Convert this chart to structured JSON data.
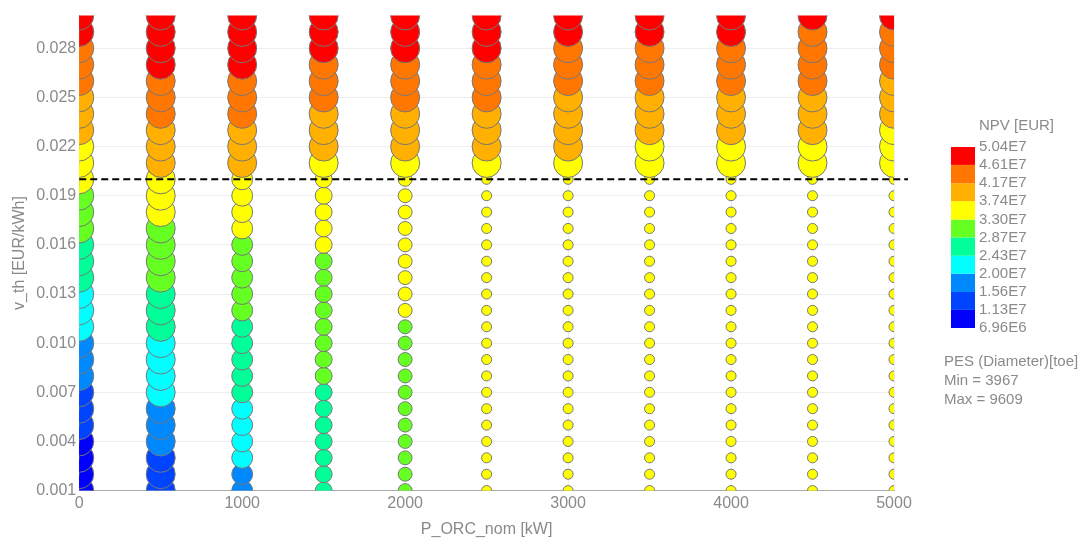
{
  "chart_data": {
    "type": "bubble",
    "xlabel": "P_ORC_nom [kW]",
    "ylabel": "v_th [EUR/kWh]",
    "clabel": "NPV [EUR]",
    "xlim": [
      0,
      5000
    ],
    "xticks": [
      0,
      1000,
      2000,
      3000,
      4000,
      5000
    ],
    "ylim": [
      0.001,
      0.03
    ],
    "yticks": [
      0.001,
      0.004,
      0.007,
      {
        "value": 0.01,
        "label": "0.010"
      },
      0.013,
      0.016,
      0.019,
      0.022,
      0.025,
      0.028
    ],
    "clim": [
      6960000.0,
      50400000.0
    ],
    "cticks": [
      {
        "value": 6960000.0,
        "label": "6.96E6"
      },
      {
        "value": 11300000.0,
        "label": "1.13E7"
      },
      {
        "value": 15600000.0,
        "label": "1.56E7"
      },
      {
        "value": 20000000.0,
        "label": "2.00E7"
      },
      {
        "value": 24300000.0,
        "label": "2.43E7"
      },
      {
        "value": 28700000.0,
        "label": "2.87E7"
      },
      {
        "value": 33000000.0,
        "label": "3.30E7"
      },
      {
        "value": 37400000.0,
        "label": "3.74E7"
      },
      {
        "value": 41700000.0,
        "label": "4.17E7"
      },
      {
        "value": 46100000.0,
        "label": "4.61E7"
      },
      {
        "value": 50400000.0,
        "label": "5.04E7"
      }
    ],
    "grid": true,
    "legend": false,
    "ref_lines": [
      {
        "axis": "y",
        "value": 0.02,
        "color": "#000000",
        "line_style": "dashed"
      }
    ],
    "annotations": [
      "PES (Diameter)[toe]",
      "Min = 3967",
      "Max = 9609"
    ],
    "series": [
      {
        "x": [
          0,
          0,
          0,
          0,
          0,
          0,
          0,
          0,
          0,
          0,
          0,
          0,
          0,
          0,
          0,
          0,
          0,
          0,
          0,
          0,
          0,
          0,
          0,
          0,
          0,
          0,
          0,
          0,
          0,
          0
        ],
        "values": [
          0.001,
          0.002,
          0.003,
          0.004,
          0.005,
          0.006,
          0.007,
          0.008,
          0.009,
          0.01,
          0.011,
          0.012,
          0.013,
          0.014,
          0.015,
          0.016,
          0.017,
          0.018,
          0.019,
          0.02,
          0.021,
          0.022,
          0.023,
          0.024,
          0.025,
          0.026,
          0.027,
          0.028,
          0.029,
          0.03
        ],
        "sizes": [
          1,
          1,
          1,
          1,
          1,
          1,
          1,
          1,
          1,
          1,
          1,
          1,
          1,
          1,
          1,
          1,
          1,
          1,
          1,
          1,
          1,
          1,
          1,
          1,
          1,
          1,
          1,
          1,
          1,
          1
        ],
        "colors": [
          "#0000ff",
          "#0000ff",
          "#0000ff",
          "#0000ff",
          "#0044ff",
          "#0044ff",
          "#0044ff",
          "#0088ff",
          "#0088ff",
          "#0088ff",
          "#00ffff",
          "#00ffff",
          "#00ffff",
          "#00ff99",
          "#00ff99",
          "#00ff99",
          "#66ff22",
          "#66ff22",
          "#66ff22",
          "#ffff00",
          "#ffff00",
          "#ffff00",
          "#ffb000",
          "#ffb000",
          "#ffb000",
          "#ff7700",
          "#ff7700",
          "#ff7700",
          "#ff0000",
          "#ff0000"
        ]
      },
      {
        "x": [
          500,
          500,
          500,
          500,
          500,
          500,
          500,
          500,
          500,
          500,
          500,
          500,
          500,
          500,
          500,
          500,
          500,
          500,
          500,
          500,
          500,
          500,
          500,
          500,
          500,
          500,
          500,
          500,
          500,
          500
        ],
        "values": [
          0.001,
          0.002,
          0.003,
          0.004,
          0.005,
          0.006,
          0.007,
          0.008,
          0.009,
          0.01,
          0.011,
          0.012,
          0.013,
          0.014,
          0.015,
          0.016,
          0.017,
          0.018,
          0.019,
          0.02,
          0.021,
          0.022,
          0.023,
          0.024,
          0.025,
          0.026,
          0.027,
          0.028,
          0.029,
          0.03
        ],
        "sizes": [
          1,
          1,
          1,
          1,
          1,
          1,
          1,
          1,
          1,
          1,
          1,
          1,
          1,
          1,
          1,
          1,
          1,
          1,
          1,
          1,
          1,
          1,
          1,
          1,
          1,
          1,
          1,
          1,
          1,
          1
        ],
        "colors": [
          "#0044ff",
          "#0044ff",
          "#0044ff",
          "#0088ff",
          "#0088ff",
          "#0088ff",
          "#00ffff",
          "#00ffff",
          "#00ffff",
          "#00ffff",
          "#00ff99",
          "#00ff99",
          "#00ff99",
          "#66ff22",
          "#66ff22",
          "#66ff22",
          "#66ff22",
          "#ffff00",
          "#ffff00",
          "#ffff00",
          "#ffb000",
          "#ffb000",
          "#ffb000",
          "#ff7700",
          "#ff7700",
          "#ff7700",
          "#ff0000",
          "#ff0000",
          "#ff0000",
          "#ff0000"
        ]
      },
      {
        "x": [
          1000,
          1000,
          1000,
          1000,
          1000,
          1000,
          1000,
          1000,
          1000,
          1000,
          1000,
          1000,
          1000,
          1000,
          1000,
          1000,
          1000,
          1000,
          1000,
          1000,
          1000,
          1000,
          1000,
          1000,
          1000,
          1000,
          1000,
          1000,
          1000,
          1000
        ],
        "values": [
          0.001,
          0.002,
          0.003,
          0.004,
          0.005,
          0.006,
          0.007,
          0.008,
          0.009,
          0.01,
          0.011,
          0.012,
          0.013,
          0.014,
          0.015,
          0.016,
          0.017,
          0.018,
          0.019,
          0.02,
          0.021,
          0.022,
          0.023,
          0.024,
          0.025,
          0.026,
          0.027,
          0.028,
          0.029,
          0.03
        ],
        "sizes": [
          0.52,
          0.52,
          0.52,
          0.52,
          0.52,
          0.52,
          0.52,
          0.52,
          0.52,
          0.52,
          0.52,
          0.52,
          0.52,
          0.52,
          0.52,
          0.52,
          0.52,
          0.52,
          0.52,
          0.52,
          1,
          1,
          1,
          1,
          1,
          1,
          1,
          1,
          1,
          1
        ],
        "colors": [
          "#0088ff",
          "#0088ff",
          "#00ffff",
          "#00ffff",
          "#00ffff",
          "#00ffff",
          "#00ff99",
          "#00ff99",
          "#00ff99",
          "#00ff99",
          "#00ff99",
          "#66ff22",
          "#66ff22",
          "#66ff22",
          "#66ff22",
          "#66ff22",
          "#ffff00",
          "#ffff00",
          "#ffff00",
          "#ffff00",
          "#ffb000",
          "#ffb000",
          "#ffb000",
          "#ff7700",
          "#ff7700",
          "#ff7700",
          "#ff0000",
          "#ff0000",
          "#ff0000",
          "#ff0000"
        ]
      },
      {
        "x": [
          1500,
          1500,
          1500,
          1500,
          1500,
          1500,
          1500,
          1500,
          1500,
          1500,
          1500,
          1500,
          1500,
          1500,
          1500,
          1500,
          1500,
          1500,
          1500,
          1500,
          1500,
          1500,
          1500,
          1500,
          1500,
          1500,
          1500,
          1500,
          1500,
          1500
        ],
        "values": [
          0.001,
          0.002,
          0.003,
          0.004,
          0.005,
          0.006,
          0.007,
          0.008,
          0.009,
          0.01,
          0.011,
          0.012,
          0.013,
          0.014,
          0.015,
          0.016,
          0.017,
          0.018,
          0.019,
          0.02,
          0.021,
          0.022,
          0.023,
          0.024,
          0.025,
          0.026,
          0.027,
          0.028,
          0.029,
          0.03
        ],
        "sizes": [
          0.34,
          0.34,
          0.34,
          0.34,
          0.34,
          0.34,
          0.34,
          0.34,
          0.34,
          0.34,
          0.34,
          0.34,
          0.34,
          0.34,
          0.34,
          0.34,
          0.34,
          0.34,
          0.34,
          0.34,
          1,
          1,
          1,
          1,
          1,
          1,
          1,
          1,
          1,
          1
        ],
        "colors": [
          "#00ff99",
          "#00ff99",
          "#00ff99",
          "#00ff99",
          "#00ff99",
          "#00ff99",
          "#00ff99",
          "#66ff22",
          "#66ff22",
          "#66ff22",
          "#66ff22",
          "#66ff22",
          "#66ff22",
          "#66ff22",
          "#66ff22",
          "#ffff00",
          "#ffff00",
          "#ffff00",
          "#ffff00",
          "#ffff00",
          "#ffff00",
          "#ffb000",
          "#ffb000",
          "#ffb000",
          "#ff7700",
          "#ff7700",
          "#ff7700",
          "#ff0000",
          "#ff0000",
          "#ff0000"
        ]
      },
      {
        "x": [
          2000,
          2000,
          2000,
          2000,
          2000,
          2000,
          2000,
          2000,
          2000,
          2000,
          2000,
          2000,
          2000,
          2000,
          2000,
          2000,
          2000,
          2000,
          2000,
          2000,
          2000,
          2000,
          2000,
          2000,
          2000,
          2000,
          2000,
          2000,
          2000,
          2000
        ],
        "values": [
          0.001,
          0.002,
          0.003,
          0.004,
          0.005,
          0.006,
          0.007,
          0.008,
          0.009,
          0.01,
          0.011,
          0.012,
          0.013,
          0.014,
          0.015,
          0.016,
          0.017,
          0.018,
          0.019,
          0.02,
          0.021,
          0.022,
          0.023,
          0.024,
          0.025,
          0.026,
          0.027,
          0.028,
          0.029,
          0.03
        ],
        "sizes": [
          0.23,
          0.23,
          0.23,
          0.23,
          0.23,
          0.23,
          0.23,
          0.23,
          0.23,
          0.23,
          0.23,
          0.23,
          0.23,
          0.23,
          0.23,
          0.23,
          0.23,
          0.23,
          0.23,
          0.23,
          1,
          1,
          1,
          1,
          1,
          1,
          1,
          1,
          1,
          1
        ],
        "colors": [
          "#66ff22",
          "#66ff22",
          "#66ff22",
          "#66ff22",
          "#66ff22",
          "#66ff22",
          "#66ff22",
          "#66ff22",
          "#66ff22",
          "#66ff22",
          "#66ff22",
          "#ffff00",
          "#ffff00",
          "#ffff00",
          "#ffff00",
          "#ffff00",
          "#ffff00",
          "#ffff00",
          "#ffff00",
          "#ffff00",
          "#ffff00",
          "#ffb000",
          "#ffb000",
          "#ffb000",
          "#ff7700",
          "#ff7700",
          "#ff7700",
          "#ff0000",
          "#ff0000",
          "#ff0000"
        ]
      },
      {
        "x": [
          2500,
          2500,
          2500,
          2500,
          2500,
          2500,
          2500,
          2500,
          2500,
          2500,
          2500,
          2500,
          2500,
          2500,
          2500,
          2500,
          2500,
          2500,
          2500,
          2500,
          2500,
          2500,
          2500,
          2500,
          2500,
          2500,
          2500,
          2500,
          2500,
          2500
        ],
        "values": [
          0.001,
          0.002,
          0.003,
          0.004,
          0.005,
          0.006,
          0.007,
          0.008,
          0.009,
          0.01,
          0.011,
          0.012,
          0.013,
          0.014,
          0.015,
          0.016,
          0.017,
          0.018,
          0.019,
          0.02,
          0.021,
          0.022,
          0.023,
          0.024,
          0.025,
          0.026,
          0.027,
          0.028,
          0.029,
          0.03
        ],
        "sizes": [
          0.12,
          0.12,
          0.12,
          0.12,
          0.12,
          0.12,
          0.12,
          0.12,
          0.12,
          0.12,
          0.12,
          0.12,
          0.12,
          0.12,
          0.12,
          0.12,
          0.12,
          0.12,
          0.12,
          0.12,
          1,
          1,
          1,
          1,
          1,
          1,
          1,
          1,
          1,
          1
        ],
        "colors": [
          "#ffff00",
          "#ffff00",
          "#ffff00",
          "#ffff00",
          "#ffff00",
          "#ffff00",
          "#ffff00",
          "#ffff00",
          "#ffff00",
          "#ffff00",
          "#ffff00",
          "#ffff00",
          "#ffff00",
          "#ffff00",
          "#ffff00",
          "#ffff00",
          "#ffff00",
          "#ffff00",
          "#ffff00",
          "#ffff00",
          "#ffff00",
          "#ffb000",
          "#ffb000",
          "#ffb000",
          "#ff7700",
          "#ff7700",
          "#ff7700",
          "#ff0000",
          "#ff0000",
          "#ff0000"
        ]
      },
      {
        "x": [
          3000,
          3000,
          3000,
          3000,
          3000,
          3000,
          3000,
          3000,
          3000,
          3000,
          3000,
          3000,
          3000,
          3000,
          3000,
          3000,
          3000,
          3000,
          3000,
          3000,
          3000,
          3000,
          3000,
          3000,
          3000,
          3000,
          3000,
          3000,
          3000,
          3000
        ],
        "values": [
          0.001,
          0.002,
          0.003,
          0.004,
          0.005,
          0.006,
          0.007,
          0.008,
          0.009,
          0.01,
          0.011,
          0.012,
          0.013,
          0.014,
          0.015,
          0.016,
          0.017,
          0.018,
          0.019,
          0.02,
          0.021,
          0.022,
          0.023,
          0.024,
          0.025,
          0.026,
          0.027,
          0.028,
          0.029,
          0.03
        ],
        "sizes": [
          0.12,
          0.12,
          0.12,
          0.12,
          0.12,
          0.12,
          0.12,
          0.12,
          0.12,
          0.12,
          0.12,
          0.12,
          0.12,
          0.12,
          0.12,
          0.12,
          0.12,
          0.12,
          0.12,
          0.12,
          1,
          1,
          1,
          1,
          1,
          1,
          1,
          1,
          1,
          1
        ],
        "colors": [
          "#ffff00",
          "#ffff00",
          "#ffff00",
          "#ffff00",
          "#ffff00",
          "#ffff00",
          "#ffff00",
          "#ffff00",
          "#ffff00",
          "#ffff00",
          "#ffff00",
          "#ffff00",
          "#ffff00",
          "#ffff00",
          "#ffff00",
          "#ffff00",
          "#ffff00",
          "#ffff00",
          "#ffff00",
          "#ffff00",
          "#ffff00",
          "#ffb000",
          "#ffb000",
          "#ffb000",
          "#ffb000",
          "#ff7700",
          "#ff7700",
          "#ff7700",
          "#ff0000",
          "#ff0000"
        ]
      },
      {
        "x": [
          3500,
          3500,
          3500,
          3500,
          3500,
          3500,
          3500,
          3500,
          3500,
          3500,
          3500,
          3500,
          3500,
          3500,
          3500,
          3500,
          3500,
          3500,
          3500,
          3500,
          3500,
          3500,
          3500,
          3500,
          3500,
          3500,
          3500,
          3500,
          3500,
          3500
        ],
        "values": [
          0.001,
          0.002,
          0.003,
          0.004,
          0.005,
          0.006,
          0.007,
          0.008,
          0.009,
          0.01,
          0.011,
          0.012,
          0.013,
          0.014,
          0.015,
          0.016,
          0.017,
          0.018,
          0.019,
          0.02,
          0.021,
          0.022,
          0.023,
          0.024,
          0.025,
          0.026,
          0.027,
          0.028,
          0.029,
          0.03
        ],
        "sizes": [
          0.12,
          0.12,
          0.12,
          0.12,
          0.12,
          0.12,
          0.12,
          0.12,
          0.12,
          0.12,
          0.12,
          0.12,
          0.12,
          0.12,
          0.12,
          0.12,
          0.12,
          0.12,
          0.12,
          0.12,
          1,
          1,
          1,
          1,
          1,
          1,
          1,
          1,
          1,
          1
        ],
        "colors": [
          "#ffff00",
          "#ffff00",
          "#ffff00",
          "#ffff00",
          "#ffff00",
          "#ffff00",
          "#ffff00",
          "#ffff00",
          "#ffff00",
          "#ffff00",
          "#ffff00",
          "#ffff00",
          "#ffff00",
          "#ffff00",
          "#ffff00",
          "#ffff00",
          "#ffff00",
          "#ffff00",
          "#ffff00",
          "#ffff00",
          "#ffff00",
          "#ffff00",
          "#ffb000",
          "#ffb000",
          "#ffb000",
          "#ff7700",
          "#ff7700",
          "#ff7700",
          "#ff0000",
          "#ff0000"
        ]
      },
      {
        "x": [
          4000,
          4000,
          4000,
          4000,
          4000,
          4000,
          4000,
          4000,
          4000,
          4000,
          4000,
          4000,
          4000,
          4000,
          4000,
          4000,
          4000,
          4000,
          4000,
          4000,
          4000,
          4000,
          4000,
          4000,
          4000,
          4000,
          4000,
          4000,
          4000,
          4000
        ],
        "values": [
          0.001,
          0.002,
          0.003,
          0.004,
          0.005,
          0.006,
          0.007,
          0.008,
          0.009,
          0.01,
          0.011,
          0.012,
          0.013,
          0.014,
          0.015,
          0.016,
          0.017,
          0.018,
          0.019,
          0.02,
          0.021,
          0.022,
          0.023,
          0.024,
          0.025,
          0.026,
          0.027,
          0.028,
          0.029,
          0.03
        ],
        "sizes": [
          0.12,
          0.12,
          0.12,
          0.12,
          0.12,
          0.12,
          0.12,
          0.12,
          0.12,
          0.12,
          0.12,
          0.12,
          0.12,
          0.12,
          0.12,
          0.12,
          0.12,
          0.12,
          0.12,
          0.12,
          1,
          1,
          1,
          1,
          1,
          1,
          1,
          1,
          1,
          1
        ],
        "colors": [
          "#ffff00",
          "#ffff00",
          "#ffff00",
          "#ffff00",
          "#ffff00",
          "#ffff00",
          "#ffff00",
          "#ffff00",
          "#ffff00",
          "#ffff00",
          "#ffff00",
          "#ffff00",
          "#ffff00",
          "#ffff00",
          "#ffff00",
          "#ffff00",
          "#ffff00",
          "#ffff00",
          "#ffff00",
          "#ffff00",
          "#ffff00",
          "#ffff00",
          "#ffb000",
          "#ffb000",
          "#ffb000",
          "#ff7700",
          "#ff7700",
          "#ff7700",
          "#ff0000",
          "#ff0000"
        ]
      },
      {
        "x": [
          4500,
          4500,
          4500,
          4500,
          4500,
          4500,
          4500,
          4500,
          4500,
          4500,
          4500,
          4500,
          4500,
          4500,
          4500,
          4500,
          4500,
          4500,
          4500,
          4500,
          4500,
          4500,
          4500,
          4500,
          4500,
          4500,
          4500,
          4500,
          4500,
          4500
        ],
        "values": [
          0.001,
          0.002,
          0.003,
          0.004,
          0.005,
          0.006,
          0.007,
          0.008,
          0.009,
          0.01,
          0.011,
          0.012,
          0.013,
          0.014,
          0.015,
          0.016,
          0.017,
          0.018,
          0.019,
          0.02,
          0.021,
          0.022,
          0.023,
          0.024,
          0.025,
          0.026,
          0.027,
          0.028,
          0.029,
          0.03
        ],
        "sizes": [
          0.12,
          0.12,
          0.12,
          0.12,
          0.12,
          0.12,
          0.12,
          0.12,
          0.12,
          0.12,
          0.12,
          0.12,
          0.12,
          0.12,
          0.12,
          0.12,
          0.12,
          0.12,
          0.12,
          0.12,
          1,
          1,
          1,
          1,
          1,
          1,
          1,
          1,
          1,
          1
        ],
        "colors": [
          "#ffff00",
          "#ffff00",
          "#ffff00",
          "#ffff00",
          "#ffff00",
          "#ffff00",
          "#ffff00",
          "#ffff00",
          "#ffff00",
          "#ffff00",
          "#ffff00",
          "#ffff00",
          "#ffff00",
          "#ffff00",
          "#ffff00",
          "#ffff00",
          "#ffff00",
          "#ffff00",
          "#ffff00",
          "#ffff00",
          "#ffff00",
          "#ffff00",
          "#ffb000",
          "#ffb000",
          "#ffb000",
          "#ff7700",
          "#ff7700",
          "#ff7700",
          "#ff7700",
          "#ff0000"
        ]
      },
      {
        "x": [
          5000,
          5000,
          5000,
          5000,
          5000,
          5000,
          5000,
          5000,
          5000,
          5000,
          5000,
          5000,
          5000,
          5000,
          5000,
          5000,
          5000,
          5000,
          5000,
          5000,
          5000,
          5000,
          5000,
          5000,
          5000,
          5000,
          5000,
          5000,
          5000,
          5000
        ],
        "values": [
          0.001,
          0.002,
          0.003,
          0.004,
          0.005,
          0.006,
          0.007,
          0.008,
          0.009,
          0.01,
          0.011,
          0.012,
          0.013,
          0.014,
          0.015,
          0.016,
          0.017,
          0.018,
          0.019,
          0.02,
          0.021,
          0.022,
          0.023,
          0.024,
          0.025,
          0.026,
          0.027,
          0.028,
          0.029,
          0.03
        ],
        "sizes": [
          0.12,
          0.12,
          0.12,
          0.12,
          0.12,
          0.12,
          0.12,
          0.12,
          0.12,
          0.12,
          0.12,
          0.12,
          0.12,
          0.12,
          0.12,
          0.12,
          0.12,
          0.12,
          0.12,
          0.12,
          1,
          1,
          1,
          1,
          1,
          1,
          1,
          1,
          1,
          1
        ],
        "colors": [
          "#ffff00",
          "#ffff00",
          "#ffff00",
          "#ffff00",
          "#ffff00",
          "#ffff00",
          "#ffff00",
          "#ffff00",
          "#ffff00",
          "#ffff00",
          "#ffff00",
          "#ffff00",
          "#ffff00",
          "#ffff00",
          "#ffff00",
          "#ffff00",
          "#ffff00",
          "#ffff00",
          "#ffff00",
          "#ffff00",
          "#ffff00",
          "#ffff00",
          "#ffff00",
          "#ffb000",
          "#ffb000",
          "#ffb000",
          "#ff7700",
          "#ff7700",
          "#ff7700",
          "#ff0000"
        ]
      }
    ]
  }
}
